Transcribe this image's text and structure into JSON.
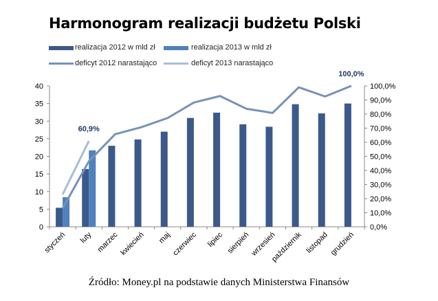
{
  "title": "Harmonogram realizacji budżetu Polski",
  "source": "Źródło: Money.pl na podstawie danych Ministerstwa Finansów",
  "legend": [
    {
      "label": "realizacja 2012 w mld zł",
      "color": "#3b5a8a",
      "kind": "bar"
    },
    {
      "label": "realizacja 2013 w mld zł",
      "color": "#4f81bd",
      "kind": "bar"
    },
    {
      "label": "deficyt 2012 narastająco",
      "color": "#7692b8",
      "kind": "line"
    },
    {
      "label": "deficyt 2013 narastająco",
      "color": "#a9bcd6",
      "kind": "line"
    }
  ],
  "chart_data": {
    "type": "bar",
    "title": "Harmonogram realizacji budżetu Polski",
    "categories": [
      "styczeń",
      "luty",
      "marzec",
      "kwiecień",
      "maj",
      "czerwiec",
      "lipiec",
      "sierpień",
      "wrzesień",
      "październik",
      "listopad",
      "grudzień"
    ],
    "series": [
      {
        "name": "realizacja 2012 w mld zł",
        "type": "bar",
        "axis": "left",
        "color": "#3b5a8a",
        "values": [
          5.4,
          16.4,
          23.0,
          24.8,
          27.0,
          30.9,
          32.4,
          29.1,
          28.4,
          34.8,
          32.2,
          35.0
        ]
      },
      {
        "name": "realizacja 2013 w mld zł",
        "type": "bar",
        "axis": "left",
        "color": "#4f81bd",
        "values": [
          8.4,
          21.7,
          null,
          null,
          null,
          null,
          null,
          null,
          null,
          null,
          null,
          null
        ]
      },
      {
        "name": "deficyt 2012 narastająco",
        "type": "line",
        "axis": "right",
        "color": "#7692b8",
        "values": [
          0.13,
          0.465,
          0.657,
          0.707,
          0.772,
          0.882,
          0.928,
          0.838,
          0.808,
          0.99,
          0.925,
          1.0
        ]
      },
      {
        "name": "deficyt 2013 narastająco",
        "type": "line",
        "axis": "right",
        "color": "#a9bcd6",
        "values": [
          0.23,
          0.609,
          null,
          null,
          null,
          null,
          null,
          null,
          null,
          null,
          null,
          null
        ]
      }
    ],
    "y_left": {
      "min": 0,
      "max": 40,
      "ticks": [
        "0",
        "5",
        "10",
        "15",
        "20",
        "25",
        "30",
        "35",
        "40"
      ]
    },
    "y_right": {
      "min": 0,
      "max": 1,
      "ticks": [
        "0,0%",
        "10,0%",
        "20,0%",
        "30,0%",
        "40,0%",
        "50,0%",
        "60,0%",
        "70,0%",
        "80,0%",
        "90,0%",
        "100,0%"
      ]
    },
    "annotations": [
      {
        "text": "60,9%",
        "series": 3,
        "index": 1
      },
      {
        "text": "100,0%",
        "series": 2,
        "index": 11
      }
    ],
    "grid": false,
    "legend_position": "top-left"
  }
}
